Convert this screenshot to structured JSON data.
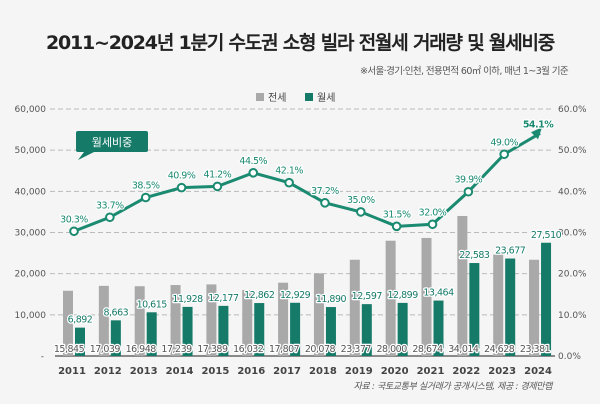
{
  "chart_data": {
    "type": "bar+line",
    "title": "2011~2024년 1분기 수도권 소형 빌라 전월세 거래량 및 월세비중",
    "subtitle": "※서울·경기·인천, 전용면적 60㎡ 이하, 매년 1~3월 기준",
    "categories": [
      "2011",
      "2012",
      "2013",
      "2014",
      "2015",
      "2016",
      "2017",
      "2018",
      "2019",
      "2020",
      "2021",
      "2022",
      "2023",
      "2024"
    ],
    "series": [
      {
        "name": "전세",
        "type": "bar",
        "axis": "left",
        "color": "#a9a9a9",
        "values": [
          15845,
          17039,
          16948,
          17239,
          17389,
          16032,
          17807,
          20078,
          23377,
          28000,
          28674,
          34014,
          24628,
          23381
        ],
        "labels": [
          "15,845",
          "17,039",
          "16,948",
          "17,239",
          "17,389",
          "16,032",
          "17,807",
          "20,078",
          "23,377",
          "28,000",
          "28,674",
          "34,014",
          "24,628",
          "23,381"
        ]
      },
      {
        "name": "월세",
        "type": "bar",
        "axis": "left",
        "color": "#157a68",
        "values": [
          6892,
          8663,
          10615,
          11928,
          12177,
          12862,
          12929,
          11890,
          12597,
          12899,
          13464,
          22583,
          23677,
          27510
        ],
        "labels": [
          "6,892",
          "8,663",
          "10,615",
          "11,928",
          "12,177",
          "12,862",
          "12,929",
          "11,890",
          "12,597",
          "12,899",
          "13,464",
          "22,583",
          "23,677",
          "27,510"
        ]
      },
      {
        "name": "월세비중",
        "type": "line",
        "axis": "right",
        "color": "#1a8a70",
        "values": [
          30.3,
          33.7,
          38.5,
          40.9,
          41.2,
          44.5,
          42.1,
          37.2,
          35.0,
          31.5,
          32.0,
          39.9,
          49.0,
          54.1
        ],
        "labels": [
          "30.3%",
          "33.7%",
          "38.5%",
          "40.9%",
          "41.2%",
          "44.5%",
          "42.1%",
          "37.2%",
          "35.0%",
          "31.5%",
          "32.0%",
          "39.9%",
          "49.0%",
          "54.1%"
        ]
      }
    ],
    "left_axis": {
      "ylim": [
        0,
        60000
      ],
      "ticks": [
        "-",
        "10,000",
        "20,000",
        "30,000",
        "40,000",
        "50,000",
        "60,000"
      ]
    },
    "right_axis": {
      "ylim": [
        0,
        60
      ],
      "ticks": [
        "0.0%",
        "10.0%",
        "20.0%",
        "30.0%",
        "40.0%",
        "50.0%",
        "60.0%"
      ]
    },
    "grid": true,
    "legend": "top-center",
    "callout": "월세비중",
    "source": "자료 : 국토교통부 실거래가 공개시스템, 제공 : 경제만랩"
  }
}
